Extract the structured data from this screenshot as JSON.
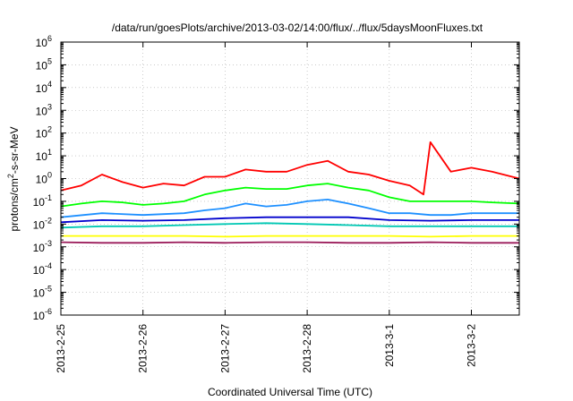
{
  "chart_data": {
    "type": "line",
    "title": "/data/run/goesPlots/archive/2013-03-02/14:00/flux/../flux/5daysMoonFluxes.txt",
    "xlabel": "Coordinated Universal Time (UTC)",
    "ylabel": {
      "prefix": "protons/cm",
      "sup": "2",
      "suffix": "-s-sr-MeV"
    },
    "y_scale": "log",
    "ylim": [
      1e-06,
      1000000.0
    ],
    "y_ticks": [
      {
        "value": 1e-06,
        "base": "10",
        "exp": "-6"
      },
      {
        "value": 1e-05,
        "base": "10",
        "exp": "-5"
      },
      {
        "value": 0.0001,
        "base": "10",
        "exp": "-4"
      },
      {
        "value": 0.001,
        "base": "10",
        "exp": "-3"
      },
      {
        "value": 0.01,
        "base": "10",
        "exp": "-2"
      },
      {
        "value": 0.1,
        "base": "10",
        "exp": "-1"
      },
      {
        "value": 1,
        "base": "10",
        "exp": "0"
      },
      {
        "value": 10.0,
        "base": "10",
        "exp": "1"
      },
      {
        "value": 100.0,
        "base": "10",
        "exp": "2"
      },
      {
        "value": 1000.0,
        "base": "10",
        "exp": "3"
      },
      {
        "value": 10000.0,
        "base": "10",
        "exp": "4"
      },
      {
        "value": 100000.0,
        "base": "10",
        "exp": "5"
      },
      {
        "value": 1000000.0,
        "base": "10",
        "exp": "6"
      }
    ],
    "xlim": [
      "2013-02-25 00:00",
      "2013-03-02 14:00"
    ],
    "x_ticks": [
      {
        "value": "2013-02-25 00:00",
        "label": "2013-2-25"
      },
      {
        "value": "2013-02-26 00:00",
        "label": "2013-2-26"
      },
      {
        "value": "2013-02-27 00:00",
        "label": "2013-2-27"
      },
      {
        "value": "2013-02-28 00:00",
        "label": "2013-2-28"
      },
      {
        "value": "2013-03-01 00:00",
        "label": "2013-3-1"
      },
      {
        "value": "2013-03-02 00:00",
        "label": "2013-3-2"
      }
    ],
    "grid": true,
    "series": [
      {
        "color": "#ff0000",
        "x": [
          "2013-02-25 00:00",
          "2013-02-25 06:00",
          "2013-02-25 12:00",
          "2013-02-25 18:00",
          "2013-02-26 00:00",
          "2013-02-26 06:00",
          "2013-02-26 12:00",
          "2013-02-26 18:00",
          "2013-02-27 00:00",
          "2013-02-27 06:00",
          "2013-02-27 12:00",
          "2013-02-27 18:00",
          "2013-02-28 00:00",
          "2013-02-28 06:00",
          "2013-02-28 12:00",
          "2013-02-28 18:00",
          "2013-03-01 00:00",
          "2013-03-01 06:00",
          "2013-03-01 10:00",
          "2013-03-01 12:00",
          "2013-03-01 18:00",
          "2013-03-02 00:00",
          "2013-03-02 06:00",
          "2013-03-02 14:00"
        ],
        "y": [
          0.3,
          0.5,
          1.5,
          0.7,
          0.4,
          0.6,
          0.5,
          1.2,
          1.2,
          2.5,
          2.0,
          2.0,
          4.0,
          6.0,
          2.0,
          1.5,
          0.8,
          0.5,
          0.2,
          40,
          2.0,
          3.0,
          2.0,
          1.0
        ]
      },
      {
        "color": "#00ff00",
        "x": [
          "2013-02-25 00:00",
          "2013-02-25 06:00",
          "2013-02-25 12:00",
          "2013-02-25 18:00",
          "2013-02-26 00:00",
          "2013-02-26 06:00",
          "2013-02-26 12:00",
          "2013-02-26 18:00",
          "2013-02-27 00:00",
          "2013-02-27 06:00",
          "2013-02-27 12:00",
          "2013-02-27 18:00",
          "2013-02-28 00:00",
          "2013-02-28 06:00",
          "2013-02-28 12:00",
          "2013-02-28 18:00",
          "2013-03-01 00:00",
          "2013-03-01 06:00",
          "2013-03-01 12:00",
          "2013-03-01 18:00",
          "2013-03-02 00:00",
          "2013-03-02 06:00",
          "2013-03-02 14:00"
        ],
        "y": [
          0.06,
          0.08,
          0.1,
          0.09,
          0.07,
          0.08,
          0.1,
          0.2,
          0.3,
          0.4,
          0.35,
          0.35,
          0.5,
          0.6,
          0.4,
          0.3,
          0.15,
          0.1,
          0.1,
          0.1,
          0.1,
          0.09,
          0.08
        ]
      },
      {
        "color": "#1e90ff",
        "x": [
          "2013-02-25 00:00",
          "2013-02-25 12:00",
          "2013-02-26 00:00",
          "2013-02-26 12:00",
          "2013-02-26 18:00",
          "2013-02-27 00:00",
          "2013-02-27 06:00",
          "2013-02-27 12:00",
          "2013-02-27 18:00",
          "2013-02-28 00:00",
          "2013-02-28 06:00",
          "2013-02-28 12:00",
          "2013-02-28 18:00",
          "2013-03-01 00:00",
          "2013-03-01 06:00",
          "2013-03-01 12:00",
          "2013-03-01 18:00",
          "2013-03-02 00:00",
          "2013-03-02 14:00"
        ],
        "y": [
          0.02,
          0.03,
          0.025,
          0.03,
          0.04,
          0.05,
          0.08,
          0.06,
          0.07,
          0.1,
          0.12,
          0.08,
          0.05,
          0.03,
          0.03,
          0.025,
          0.025,
          0.03,
          0.03
        ]
      },
      {
        "color": "#0000cd",
        "x": [
          "2013-02-25 00:00",
          "2013-02-25 12:00",
          "2013-02-26 00:00",
          "2013-02-26 12:00",
          "2013-02-27 00:00",
          "2013-02-27 12:00",
          "2013-02-28 00:00",
          "2013-02-28 12:00",
          "2013-03-01 00:00",
          "2013-03-01 12:00",
          "2013-03-02 00:00",
          "2013-03-02 14:00"
        ],
        "y": [
          0.012,
          0.015,
          0.014,
          0.015,
          0.018,
          0.02,
          0.02,
          0.02,
          0.015,
          0.014,
          0.015,
          0.015
        ]
      },
      {
        "color": "#00c8b4",
        "x": [
          "2013-02-25 00:00",
          "2013-02-25 12:00",
          "2013-02-26 00:00",
          "2013-02-26 12:00",
          "2013-02-27 00:00",
          "2013-02-27 12:00",
          "2013-02-28 00:00",
          "2013-02-28 12:00",
          "2013-03-01 00:00",
          "2013-03-01 12:00",
          "2013-03-02 00:00",
          "2013-03-02 14:00"
        ],
        "y": [
          0.007,
          0.008,
          0.008,
          0.009,
          0.01,
          0.011,
          0.01,
          0.009,
          0.008,
          0.008,
          0.008,
          0.008
        ]
      },
      {
        "color": "#ffff00",
        "x": [
          "2013-02-25 00:00",
          "2013-02-25 12:00",
          "2013-02-26 00:00",
          "2013-02-26 12:00",
          "2013-02-27 00:00",
          "2013-02-27 12:00",
          "2013-02-28 00:00",
          "2013-02-28 12:00",
          "2013-03-01 00:00",
          "2013-03-01 12:00",
          "2013-03-02 00:00",
          "2013-03-02 14:00"
        ],
        "y": [
          0.003,
          0.003,
          0.003,
          0.003,
          0.0028,
          0.003,
          0.003,
          0.003,
          0.003,
          0.0028,
          0.003,
          0.003
        ]
      },
      {
        "color": "#9b1b5a",
        "x": [
          "2013-02-25 00:00",
          "2013-02-25 12:00",
          "2013-02-26 00:00",
          "2013-02-26 12:00",
          "2013-02-27 00:00",
          "2013-02-27 12:00",
          "2013-02-28 00:00",
          "2013-02-28 12:00",
          "2013-03-01 00:00",
          "2013-03-01 12:00",
          "2013-03-02 00:00",
          "2013-03-02 14:00"
        ],
        "y": [
          0.0016,
          0.0015,
          0.0015,
          0.0016,
          0.0015,
          0.0016,
          0.0016,
          0.0015,
          0.0015,
          0.0016,
          0.0015,
          0.0015
        ]
      }
    ]
  }
}
